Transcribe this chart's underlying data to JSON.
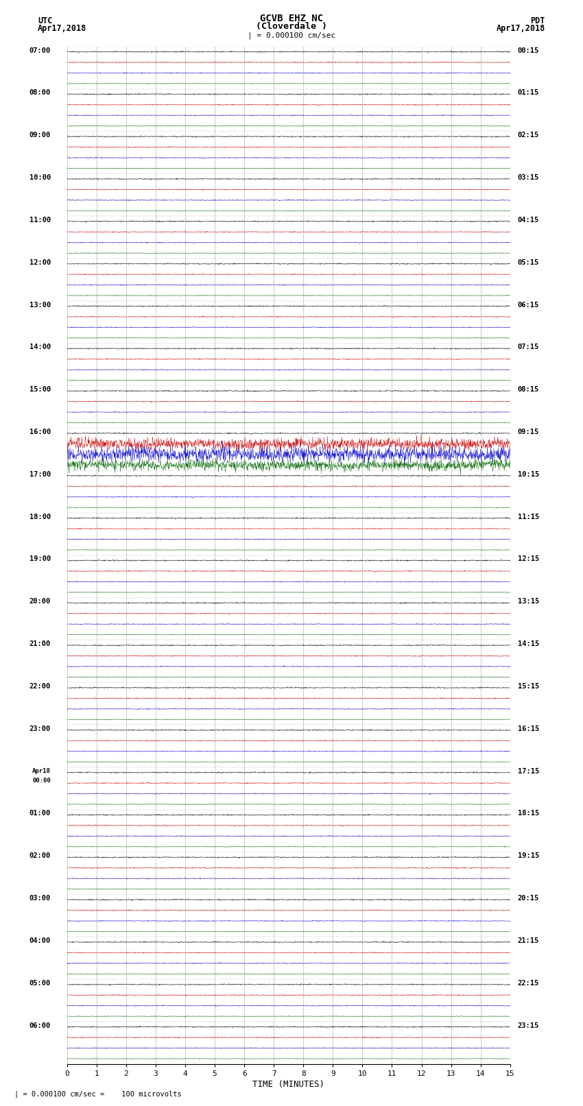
{
  "title_line1": "GCVB EHZ NC",
  "title_line2": "(Cloverdale )",
  "scale_label": "| = 0.000100 cm/sec",
  "utc_label_1": "UTC",
  "utc_label_2": "Apr17,2018",
  "pdt_label_1": "PDT",
  "pdt_label_2": "Apr17,2018",
  "bottom_label": "= 0.000100 cm/sec =    100 microvolts",
  "xlabel": "TIME (MINUTES)",
  "left_time_labels": [
    "07:00",
    "08:00",
    "09:00",
    "10:00",
    "11:00",
    "12:00",
    "13:00",
    "14:00",
    "15:00",
    "16:00",
    "17:00",
    "18:00",
    "19:00",
    "20:00",
    "21:00",
    "22:00",
    "23:00",
    "Apr18\n00:00",
    "01:00",
    "02:00",
    "03:00",
    "04:00",
    "05:00",
    "06:00"
  ],
  "right_time_labels": [
    "00:15",
    "01:15",
    "02:15",
    "03:15",
    "04:15",
    "05:15",
    "06:15",
    "07:15",
    "08:15",
    "09:15",
    "10:15",
    "11:15",
    "12:15",
    "13:15",
    "14:15",
    "15:15",
    "16:15",
    "17:15",
    "18:15",
    "19:15",
    "20:15",
    "21:15",
    "22:15",
    "23:15"
  ],
  "total_hour_slots": 24,
  "traces_per_hour": 4,
  "trace_amp_black": 0.055,
  "trace_amp_red": 0.045,
  "trace_amp_blue": 0.04,
  "trace_amp_green": 0.03,
  "special_hour_idx": 9,
  "special_amp_red": 0.55,
  "special_amp_blue": 0.7,
  "special_amp_green": 0.5,
  "bg_color": "white",
  "grid_color": "#999999",
  "trace_color_black": "#000000",
  "trace_color_red": "#cc0000",
  "trace_color_blue": "#0000cc",
  "trace_color_green": "#006600",
  "t_minutes": 15,
  "n_points": 1500
}
